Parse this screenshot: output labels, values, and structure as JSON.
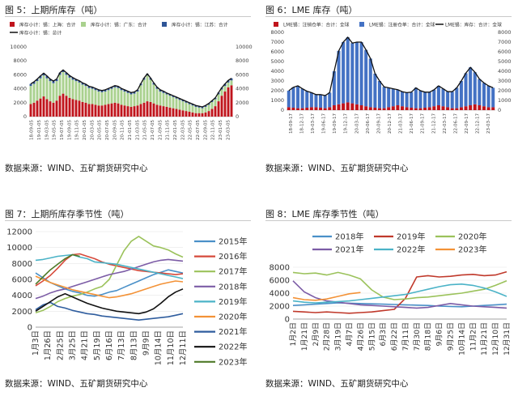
{
  "sources": [
    "数据来源：WIND、五矿期货研究中心",
    "数据来源：WIND、五矿期货研究中心",
    "数据来源：WIND、五矿期货研究中心",
    "数据来源：WIND、五矿期货研究中心"
  ],
  "chart_data": [
    {
      "id": "fig5",
      "title": "图 5：上期所库存（吨）",
      "type": "bar",
      "stacked": true,
      "ylim_left": [
        0,
        10000
      ],
      "yticks_left": [
        0,
        2000,
        4000,
        6000,
        8000,
        10000
      ],
      "ylim_right": [
        0,
        10000
      ],
      "yticks_right": [
        0,
        2000,
        4000,
        6000,
        8000,
        10000
      ],
      "x_tick_labels": [
        "18-09-05",
        "19-01-05",
        "19-03-05",
        "19-05-05",
        "19-07-05",
        "19-09-05",
        "19-11-05",
        "20-01-05",
        "20-03-05",
        "20-05-05",
        "20-07-05",
        "20-09-05",
        "20-11-05",
        "21-01-05",
        "21-03-05",
        "21-05-05",
        "21-07-05",
        "21-09-05",
        "21-11-05",
        "22-01-05",
        "22-03-05",
        "22-05-05",
        "22-07-05",
        "22-09-05",
        "22-11-05",
        "23-01-05",
        "23-03-05"
      ],
      "legend": [
        "库存小计：锡：上海：合计",
        "库存小计：锡：广东：合计",
        "库存小计：锡：江苏：合计",
        "库存小计：锡：总计"
      ],
      "colors": [
        "#c0141c",
        "#a9d18e",
        "#2f5597",
        "#111111"
      ],
      "series": [
        {
          "name": "库存小计：锡：上海：合计",
          "values": [
            1800,
            2000,
            2300,
            2600,
            2900,
            2500,
            2200,
            2000,
            2300,
            3000,
            3300,
            3000,
            2700,
            2500,
            2400,
            2300,
            2100,
            2000,
            1800,
            1800,
            1700,
            1600,
            1600,
            1700,
            1800,
            1900,
            2000,
            1900,
            1700,
            1600,
            1500,
            1400,
            1500,
            1600,
            1800,
            2000,
            2200,
            2100,
            1900,
            1700,
            1600,
            1500,
            1400,
            1300,
            1200,
            1100,
            1000,
            900,
            800,
            700,
            600,
            500,
            500,
            500,
            600,
            800,
            1100,
            1500,
            2200,
            3000,
            3600,
            4200,
            4500
          ]
        },
        {
          "name": "库存小计：锡：广东：合计",
          "values": [
            2600,
            2700,
            2800,
            2900,
            3000,
            3000,
            2900,
            2800,
            2800,
            3000,
            3100,
            3000,
            2900,
            2800,
            2700,
            2600,
            2500,
            2400,
            2300,
            2200,
            2100,
            2000,
            1900,
            1900,
            2000,
            2100,
            2200,
            2200,
            2100,
            2000,
            1900,
            1800,
            1800,
            2000,
            2700,
            3300,
            3700,
            3200,
            2700,
            2300,
            2000,
            1900,
            1800,
            1700,
            1600,
            1500,
            1400,
            1300,
            1200,
            1100,
            1000,
            900,
            800,
            700,
            800,
            900,
            1000,
            1000,
            1000,
            900,
            800,
            700,
            700
          ]
        },
        {
          "name": "库存小计：锡：江苏：合计",
          "values": [
            300,
            300,
            300,
            350,
            350,
            350,
            300,
            300,
            300,
            300,
            300,
            300,
            300,
            300,
            250,
            250,
            250,
            250,
            250,
            250,
            250,
            250,
            250,
            250,
            250,
            250,
            250,
            250,
            250,
            250,
            250,
            250,
            250,
            250,
            250,
            250,
            250,
            250,
            250,
            250,
            250,
            250,
            200,
            200,
            200,
            200,
            200,
            200,
            200,
            200,
            200,
            200,
            200,
            200,
            200,
            200,
            200,
            200,
            250,
            250,
            300,
            300,
            300
          ]
        },
        {
          "name": "库存小计：锡：总计",
          "values": [
            4700,
            5000,
            5400,
            5850,
            6250,
            5850,
            5400,
            5100,
            5400,
            6300,
            6700,
            6300,
            5900,
            5600,
            5350,
            5150,
            4850,
            4650,
            4350,
            4250,
            4050,
            3850,
            3750,
            3850,
            4050,
            4250,
            4450,
            4350,
            4050,
            3850,
            3650,
            3450,
            3550,
            3850,
            4750,
            5550,
            6150,
            5550,
            4850,
            4250,
            3850,
            3650,
            3400,
            3200,
            3000,
            2800,
            2600,
            2400,
            2200,
            2000,
            1800,
            1600,
            1500,
            1400,
            1600,
            1900,
            2300,
            2700,
            3450,
            4150,
            4700,
            5200,
            5500
          ]
        }
      ]
    },
    {
      "id": "fig6",
      "title": "图 6：LME 库存（吨）",
      "type": "bar",
      "stacked": true,
      "ylim_left": [
        0,
        8000
      ],
      "yticks_left": [
        0,
        1000,
        2000,
        3000,
        4000,
        5000,
        6000,
        7000,
        8000
      ],
      "ylim_right": [
        0,
        8000
      ],
      "yticks_right": [
        0,
        1000,
        2000,
        3000,
        4000,
        5000,
        6000,
        7000,
        8000
      ],
      "x_tick_labels": [
        "18-09-17",
        "18-12-17",
        "19-03-17",
        "19-06-17",
        "19-09-17",
        "19-12-17",
        "20-03-17",
        "20-06-17",
        "20-09-17",
        "20-12-17",
        "21-03-17",
        "21-06-17",
        "21-09-17",
        "21-12-17",
        "22-03-17",
        "22-06-17",
        "22-09-17",
        "22-12-17",
        "23-03-17"
      ],
      "legend": [
        "LME锡：注销仓单：合计：全球",
        "LME锡：注册仓单：合计：全球",
        "LME锡：库存：合计：全球"
      ],
      "colors": [
        "#c0141c",
        "#4472c4",
        "#111111"
      ],
      "series": [
        {
          "name": "LME锡：注销仓单：合计：全球",
          "values": [
            300,
            250,
            200,
            200,
            250,
            300,
            300,
            250,
            200,
            300,
            500,
            600,
            700,
            800,
            700,
            600,
            500,
            400,
            300,
            250,
            200,
            200,
            300,
            400,
            500,
            400,
            300,
            250,
            200,
            200,
            250,
            300,
            400,
            500,
            400,
            300,
            200,
            200,
            300,
            400,
            500,
            600,
            500,
            400,
            300,
            300
          ]
        },
        {
          "name": "LME锡：注册仓单：合计：全球",
          "values": [
            1700,
            2100,
            2300,
            2000,
            1700,
            1500,
            1300,
            1350,
            1300,
            1500,
            3500,
            5500,
            6300,
            6700,
            6200,
            6400,
            6500,
            5800,
            5000,
            3500,
            2800,
            2200,
            2000,
            1800,
            1600,
            1500,
            1500,
            1600,
            2100,
            1800,
            1600,
            1550,
            1700,
            2000,
            1800,
            1600,
            1700,
            2100,
            2700,
            3400,
            3900,
            3300,
            2700,
            2400,
            2200,
            2000
          ]
        },
        {
          "name": "LME锡：库存：合计：全球",
          "values": [
            2000,
            2350,
            2500,
            2200,
            1950,
            1800,
            1600,
            1600,
            1500,
            1800,
            4000,
            6100,
            7000,
            7500,
            6900,
            7000,
            7000,
            6200,
            5300,
            3750,
            3000,
            2400,
            2300,
            2200,
            2100,
            1900,
            1800,
            1850,
            2300,
            2000,
            1850,
            1850,
            2100,
            2500,
            2200,
            1900,
            1900,
            2300,
            3000,
            3800,
            4400,
            3900,
            3200,
            2800,
            2500,
            2300
          ]
        }
      ]
    },
    {
      "id": "fig7",
      "title": "图 7：上期所库存季节性（吨）",
      "type": "line",
      "ylim": [
        0,
        12000
      ],
      "yticks": [
        0,
        2000,
        4000,
        6000,
        8000,
        10000,
        12000
      ],
      "x_tick_labels": [
        "1月3日",
        "1月26日",
        "2月25日",
        "3月25日",
        "4月21日",
        "5月19日",
        "6月16日",
        "7月13日",
        "8月13日",
        "9月9日",
        "10月14日",
        "11月10日",
        "12月11日"
      ],
      "legend_position": "right",
      "series": [
        {
          "name": "2015年",
          "color": "#4a90c8",
          "values": [
            6800,
            6200,
            5600,
            5200,
            4800,
            4500,
            4300,
            4000,
            3900,
            4100,
            4400,
            4600,
            5000,
            5400,
            5800,
            6200,
            6600,
            6900,
            7200,
            7000,
            6800
          ]
        },
        {
          "name": "2016年",
          "color": "#d64a3b",
          "values": [
            5200,
            5800,
            6500,
            7400,
            8400,
            9100,
            9200,
            8900,
            8600,
            8200,
            7900,
            7700,
            7500,
            7300,
            7100,
            7000,
            6900,
            6800,
            6700,
            6600,
            6700
          ]
        },
        {
          "name": "2017年",
          "color": "#9bc25b",
          "values": [
            1800,
            2100,
            2600,
            3200,
            3600,
            3900,
            4100,
            4400,
            4800,
            5100,
            6000,
            7800,
            9600,
            10800,
            11400,
            10800,
            10200,
            10000,
            9700,
            9200,
            8800
          ]
        },
        {
          "name": "2018年",
          "color": "#7c5ca6",
          "values": [
            3600,
            3900,
            4300,
            4600,
            4800,
            5100,
            5400,
            5700,
            6000,
            6300,
            6600,
            6800,
            7000,
            7300,
            7600,
            7900,
            8200,
            8400,
            8500,
            8400,
            8300
          ]
        },
        {
          "name": "2019年",
          "color": "#4bb3c7",
          "values": [
            8400,
            8500,
            8700,
            8900,
            9000,
            9100,
            8800,
            8600,
            8200,
            8100,
            8000,
            7900,
            7700,
            7500,
            7300,
            7100,
            6900,
            6700,
            6500,
            6300,
            6100
          ]
        },
        {
          "name": "2020年",
          "color": "#f39237",
          "values": [
            6400,
            6000,
            5600,
            5300,
            5000,
            4700,
            4500,
            4300,
            4100,
            3900,
            3700,
            3800,
            4000,
            4200,
            4500,
            4800,
            5100,
            5400,
            5600,
            5800,
            5700
          ]
        },
        {
          "name": "2021年",
          "color": "#2f5d9e",
          "values": [
            2200,
            2800,
            3100,
            2600,
            2400,
            2100,
            1900,
            1700,
            1600,
            1400,
            1300,
            1200,
            1100,
            1000,
            900,
            1000,
            1100,
            1200,
            1300,
            1500,
            1700
          ]
        },
        {
          "name": "2022年",
          "color": "#111111",
          "values": [
            2000,
            2600,
            3200,
            3800,
            4200,
            3800,
            3400,
            3000,
            2700,
            2400,
            2200,
            2000,
            1900,
            1800,
            1700,
            1900,
            2300,
            3000,
            3800,
            4400,
            4800
          ]
        },
        {
          "name": "2023年",
          "color": "#4f7a28",
          "values": [
            5400,
            6300,
            7200,
            7900,
            8600,
            9100,
            8900
          ]
        }
      ]
    },
    {
      "id": "fig8",
      "title": "图 8：LME 库存季节性（吨）",
      "type": "line",
      "ylim": [
        0,
        8000
      ],
      "yticks": [
        0,
        2000,
        4000,
        6000,
        8000
      ],
      "x_tick_labels": [
        "1月2日",
        "1月21日",
        "2月9日",
        "2月28日",
        "3月19日",
        "4月7日",
        "4月26日",
        "5月15日",
        "6月3日",
        "6月22日",
        "7月11日",
        "7月30日",
        "8月18日",
        "9月6日",
        "9月25日",
        "10月14日",
        "11月2日",
        "11月21日",
        "12月10日",
        "12月31日"
      ],
      "legend_position": "top",
      "series": [
        {
          "name": "2018年",
          "color": "#4a90c8",
          "values": [
            2100,
            2200,
            2300,
            2400,
            2500,
            2450,
            2400,
            2350,
            2300,
            2250,
            2200,
            2150,
            2100,
            2000,
            1950,
            1900,
            2000,
            2100,
            2200,
            2300
          ]
        },
        {
          "name": "2019年",
          "color": "#c0392b",
          "values": [
            1200,
            1100,
            1000,
            1100,
            1000,
            900,
            1000,
            1100,
            1300,
            1500,
            3200,
            6500,
            6700,
            6500,
            6600,
            6800,
            6900,
            6700,
            6800,
            7300
          ]
        },
        {
          "name": "2020年",
          "color": "#9bc25b",
          "values": [
            7200,
            7000,
            7100,
            6800,
            7200,
            6800,
            6200,
            4500,
            3400,
            3000,
            3100,
            3300,
            3400,
            3600,
            3800,
            4000,
            4300,
            4600,
            5200,
            5900
          ]
        },
        {
          "name": "2021年",
          "color": "#7c5ca6",
          "values": [
            5900,
            4200,
            3300,
            2800,
            2600,
            2400,
            2200,
            2100,
            2000,
            1900,
            1800,
            1700,
            1800,
            2100,
            2400,
            2200,
            2000,
            1900,
            1800,
            1700
          ]
        },
        {
          "name": "2022年",
          "color": "#4bb3c7",
          "values": [
            2800,
            2600,
            2500,
            2600,
            2700,
            2800,
            3000,
            3200,
            3400,
            3600,
            3800,
            4200,
            4600,
            5000,
            5300,
            5400,
            5200,
            4800,
            4200,
            3500
          ]
        },
        {
          "name": "2023年",
          "color": "#f39237",
          "values": [
            3300,
            3000,
            2900,
            3100,
            3500,
            3900,
            4100
          ]
        }
      ]
    }
  ]
}
